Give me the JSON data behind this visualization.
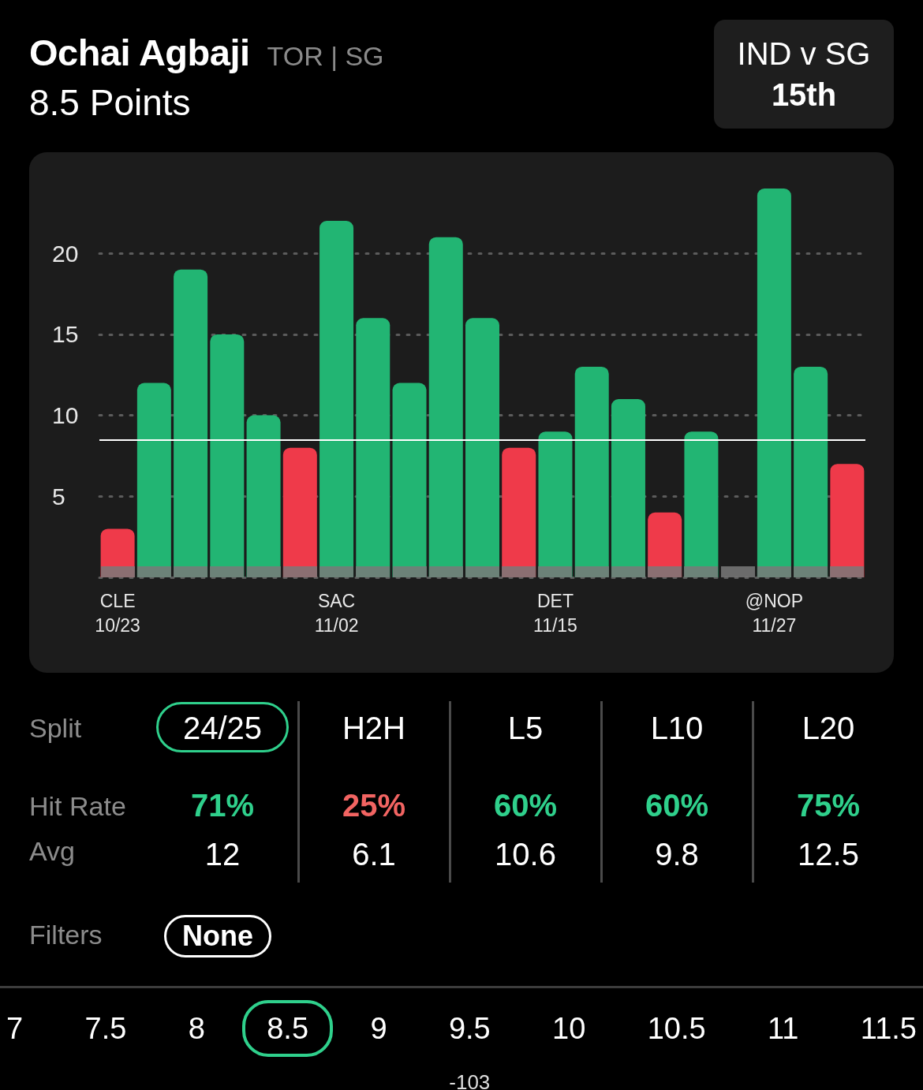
{
  "chart_data": [
    {
      "type": "bar",
      "title": "Ochai Agbaji",
      "subtitle": "8.5 Points",
      "annotations": [
        "TOR | SG",
        "IND v SG",
        "15th"
      ],
      "categories": [
        "CLE\n10/23",
        null,
        null,
        null,
        null,
        null,
        "SAC\n11/02",
        null,
        null,
        null,
        null,
        null,
        "DET\n11/15",
        null,
        null,
        null,
        null,
        null,
        "@NOP\n11/27",
        null,
        null
      ],
      "values": [
        3,
        12,
        19,
        15,
        10,
        8,
        22,
        16,
        12,
        21,
        16,
        8,
        9,
        13,
        11,
        4,
        9,
        0,
        24,
        13,
        7
      ],
      "colors": [
        "#ef3a4a",
        "#22b573",
        "#22b573",
        "#22b573",
        "#22b573",
        "#ef3a4a",
        "#22b573",
        "#22b573",
        "#22b573",
        "#22b573",
        "#22b573",
        "#ef3a4a",
        "#22b573",
        "#22b573",
        "#22b573",
        "#ef3a4a",
        "#22b573",
        null,
        "#22b573",
        "#22b573",
        "#ef3a4a"
      ],
      "ylim": [
        0,
        24
      ],
      "yticks": [
        {
          "value": 0,
          "label": null
        },
        5,
        10,
        15,
        20
      ],
      "grid": "y",
      "ref_lines": [
        {
          "axis": "y",
          "value": 8.5,
          "color": "#ffffff"
        }
      ]
    },
    {
      "type": "other",
      "xlabel": "Split",
      "categories": [
        "24/25",
        "H2H",
        "L5",
        "L10",
        "L20"
      ],
      "series": [
        {
          "name": "Hit Rate",
          "values": [
            71,
            25,
            60,
            60,
            75
          ],
          "value_labels": [
            "71%",
            "25%",
            "60%",
            "60%",
            "75%"
          ],
          "colors": [
            "#2fd08c",
            "#f26462",
            "#2fd08c",
            "#2fd08c",
            "#2fd08c"
          ]
        },
        {
          "name": "Avg",
          "values": [
            12,
            6.1,
            10.6,
            9.8,
            12.5
          ]
        }
      ],
      "data_labels": true,
      "annotations": [
        "Filters",
        "None"
      ]
    },
    {
      "type": "other",
      "annotations": [
        "7",
        "7.5",
        "8",
        "8.5",
        "9",
        "9.5",
        "10",
        "10.5",
        "11",
        "11.5",
        "-103"
      ]
    }
  ]
}
